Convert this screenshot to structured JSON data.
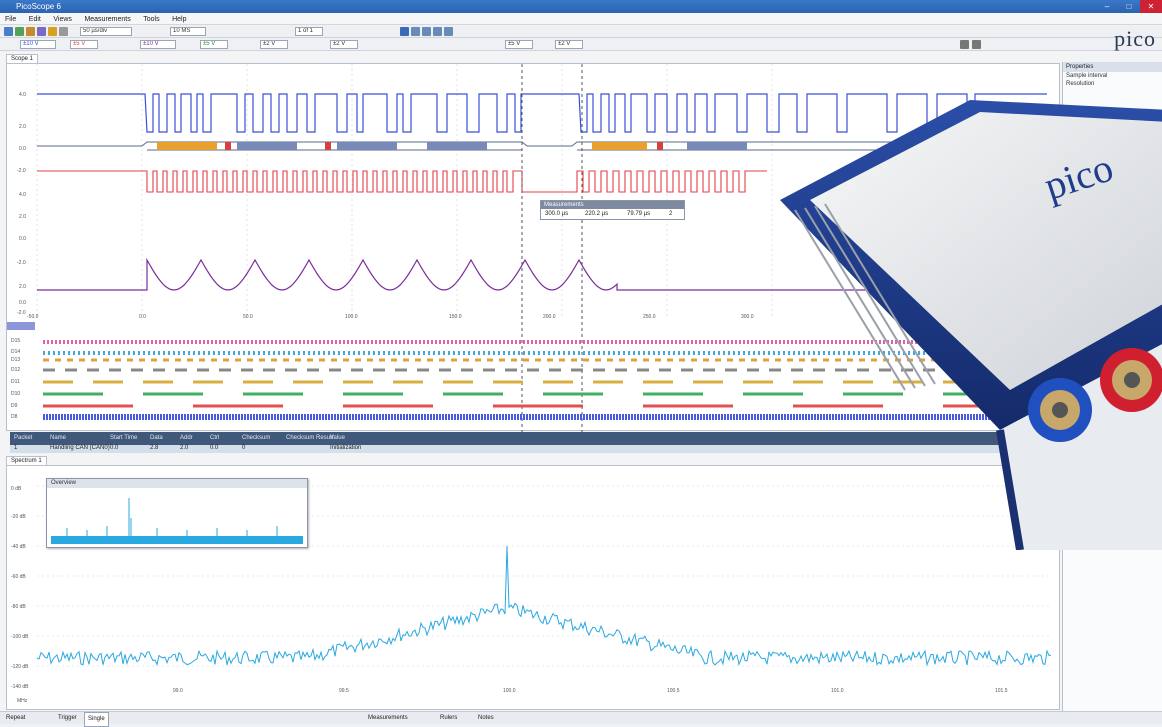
{
  "app": {
    "title": "PicoScope 6",
    "brand": "pico"
  },
  "menu": [
    "File",
    "Edit",
    "Views",
    "Measurements",
    "Tools",
    "Help"
  ],
  "toolbar1": {
    "timebase": "50 µs/div",
    "samples": "10 MS",
    "capture": "1 of 1"
  },
  "toolbar2": {
    "ch_a": "±10 V",
    "ch_b": "±5 V",
    "ch_c": "±10 V",
    "ch_d": "±5 V",
    "ch_e": "±2 V",
    "ch_f": "±2 V",
    "ch_g": "±5 V",
    "ch_h": "±2 V"
  },
  "scope_tab": "Scope 1",
  "spectrum_tab": "Spectrum 1",
  "scope_y_labels": [
    "4.0",
    "2.0",
    "0.0",
    "-2.0",
    "4.0",
    "2.0",
    "0.0",
    "-2.0",
    "2.0",
    "0.0",
    "-2.0"
  ],
  "scope_x_labels": [
    "-50.0",
    "0.0",
    "50.0",
    "100.0",
    "150.0",
    "200.0",
    "250.0",
    "300.0"
  ],
  "digital_labels": [
    "D15",
    "D14",
    "D13",
    "D12",
    "D11",
    "D10",
    "D9",
    "D8"
  ],
  "decoder": {
    "headers": [
      "Packet",
      "Name",
      "Start Time",
      "Data",
      "Addr",
      "Ctrl",
      "Checksum",
      "Checksum Result",
      "Value"
    ],
    "row": [
      "1",
      "Handling CAN (CAN0)",
      "0.0",
      "2.8",
      "2.0",
      "0.0",
      "0",
      "",
      "Initialization"
    ]
  },
  "measurement_popup": {
    "title": "Measurements",
    "values": [
      "300.0 µs",
      "220.2 µs",
      "79.79 µs",
      "2"
    ]
  },
  "mini_spectrum_title": "Overview",
  "spectrum_y_labels": [
    "0 dB",
    "-20 dB",
    "-40 dB",
    "-60 dB",
    "-80 dB",
    "-100 dB",
    "-120 dB",
    "-140 dB"
  ],
  "spectrum_x_labels": [
    "99.0",
    "99.5",
    "100.0",
    "100.5",
    "101.0",
    "101.5"
  ],
  "spectrum_x_unit": "MHz",
  "properties": {
    "title": "Properties",
    "rows": [
      "Sample interval",
      "Resolution"
    ]
  },
  "status": {
    "mode": "Repeat",
    "trigger": "Trigger",
    "trigger_mode": "Single",
    "measurements": "Measurements",
    "rulers": "Rulers",
    "notes": "Notes"
  },
  "colors": {
    "ch_a": "#3b4fd8",
    "ch_b": "#e0404a",
    "ch_c": "#7a2d9a",
    "spectrum": "#2aa8e0",
    "device_body": "#1f3d8c"
  }
}
